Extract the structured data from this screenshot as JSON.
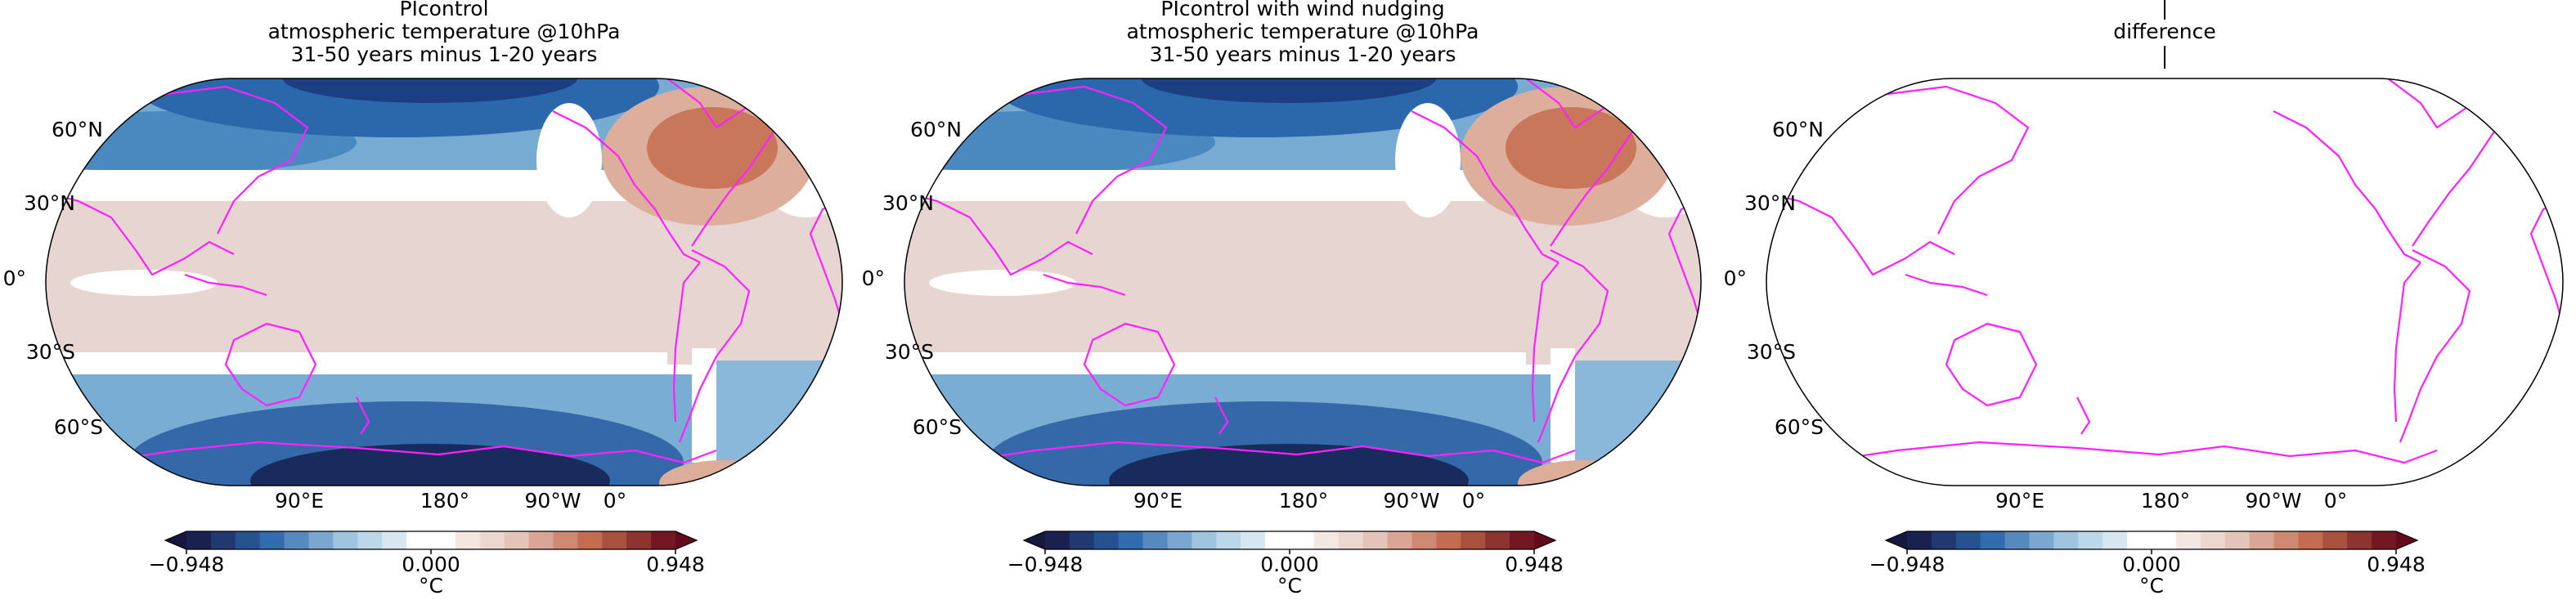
{
  "panels": [
    {
      "title": [
        "PIcontrol",
        "atmospheric temperature @10hPa",
        "31-50 years minus 1-20 years"
      ],
      "lat_labels": [
        "60°N",
        "30°N",
        "0°",
        "30°S",
        "60°S"
      ],
      "lon_labels": [
        "90°E",
        "180°",
        "90°W",
        "0°"
      ],
      "colorbar": {
        "label": "°C",
        "clim": [
          -0.948,
          0.948
        ],
        "ticks": [
          {
            "value": -0.948,
            "label": "−0.948"
          },
          {
            "value": 0,
            "label": "0.000"
          },
          {
            "value": 0.948,
            "label": "0.948"
          }
        ],
        "colormap": [
          "#16163f",
          "#2c66ab",
          "#a5c9e2",
          "#ffffff",
          "#e6c9be",
          "#c2664a",
          "#650a1c"
        ]
      }
    },
    {
      "title": [
        "PIcontrol with wind nudging",
        "atmospheric temperature @10hPa",
        "31-50 years minus 1-20 years"
      ],
      "lat_labels": [
        "60°N",
        "30°N",
        "0°",
        "30°S",
        "60°S"
      ],
      "lon_labels": [
        "90°E",
        "180°",
        "90°W",
        "0°"
      ],
      "colorbar": {
        "label": "°C",
        "clim": [
          -0.948,
          0.948
        ],
        "ticks": [
          {
            "value": -0.948,
            "label": "−0.948"
          },
          {
            "value": 0,
            "label": "0.000"
          },
          {
            "value": 0.948,
            "label": "0.948"
          }
        ],
        "colormap": [
          "#16163f",
          "#2c66ab",
          "#a5c9e2",
          "#ffffff",
          "#e6c9be",
          "#c2664a",
          "#650a1c"
        ]
      }
    },
    {
      "title": [
        "difference"
      ],
      "lat_labels": [
        "60°N",
        "30°N",
        "0°",
        "30°S",
        "60°S"
      ],
      "lon_labels": [
        "90°E",
        "180°",
        "90°W",
        "0°"
      ],
      "colorbar": {
        "label": "°C",
        "clim": [
          -0.948,
          0.948
        ],
        "ticks": [
          {
            "value": -0.948,
            "label": "−0.948"
          },
          {
            "value": 0,
            "label": "0.000"
          },
          {
            "value": 0.948,
            "label": "0.948"
          }
        ],
        "colormap": [
          "#16163f",
          "#2c66ab",
          "#a5c9e2",
          "#ffffff",
          "#e6c9be",
          "#c2664a",
          "#650a1c"
        ]
      }
    }
  ]
}
